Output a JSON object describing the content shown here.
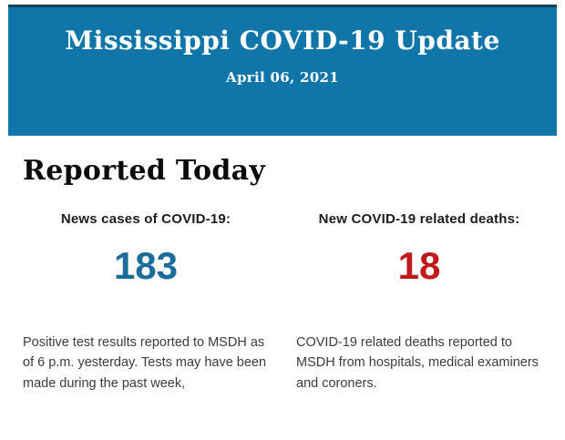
{
  "banner": {
    "title": "Mississippi COVID-19 Update",
    "date": "April 06, 2021",
    "background_color": "#1076a9",
    "top_edge_color": "#16405a",
    "text_color": "#ffffff"
  },
  "section": {
    "heading": "Reported Today"
  },
  "stats": [
    {
      "label": "News cases of COVID-19:",
      "value": "183",
      "value_color": "#1b6d9a",
      "description": "Positive test results reported to MSDH as\nof 6 p.m. yesterday. Tests may have been\nmade during the past week,"
    },
    {
      "label": "New COVID-19 related deaths:",
      "value": "18",
      "value_color": "#c1181b",
      "description": "COVID-19 related deaths reported to\nMSDH from hospitals, medical examiners\nand coroners."
    }
  ]
}
